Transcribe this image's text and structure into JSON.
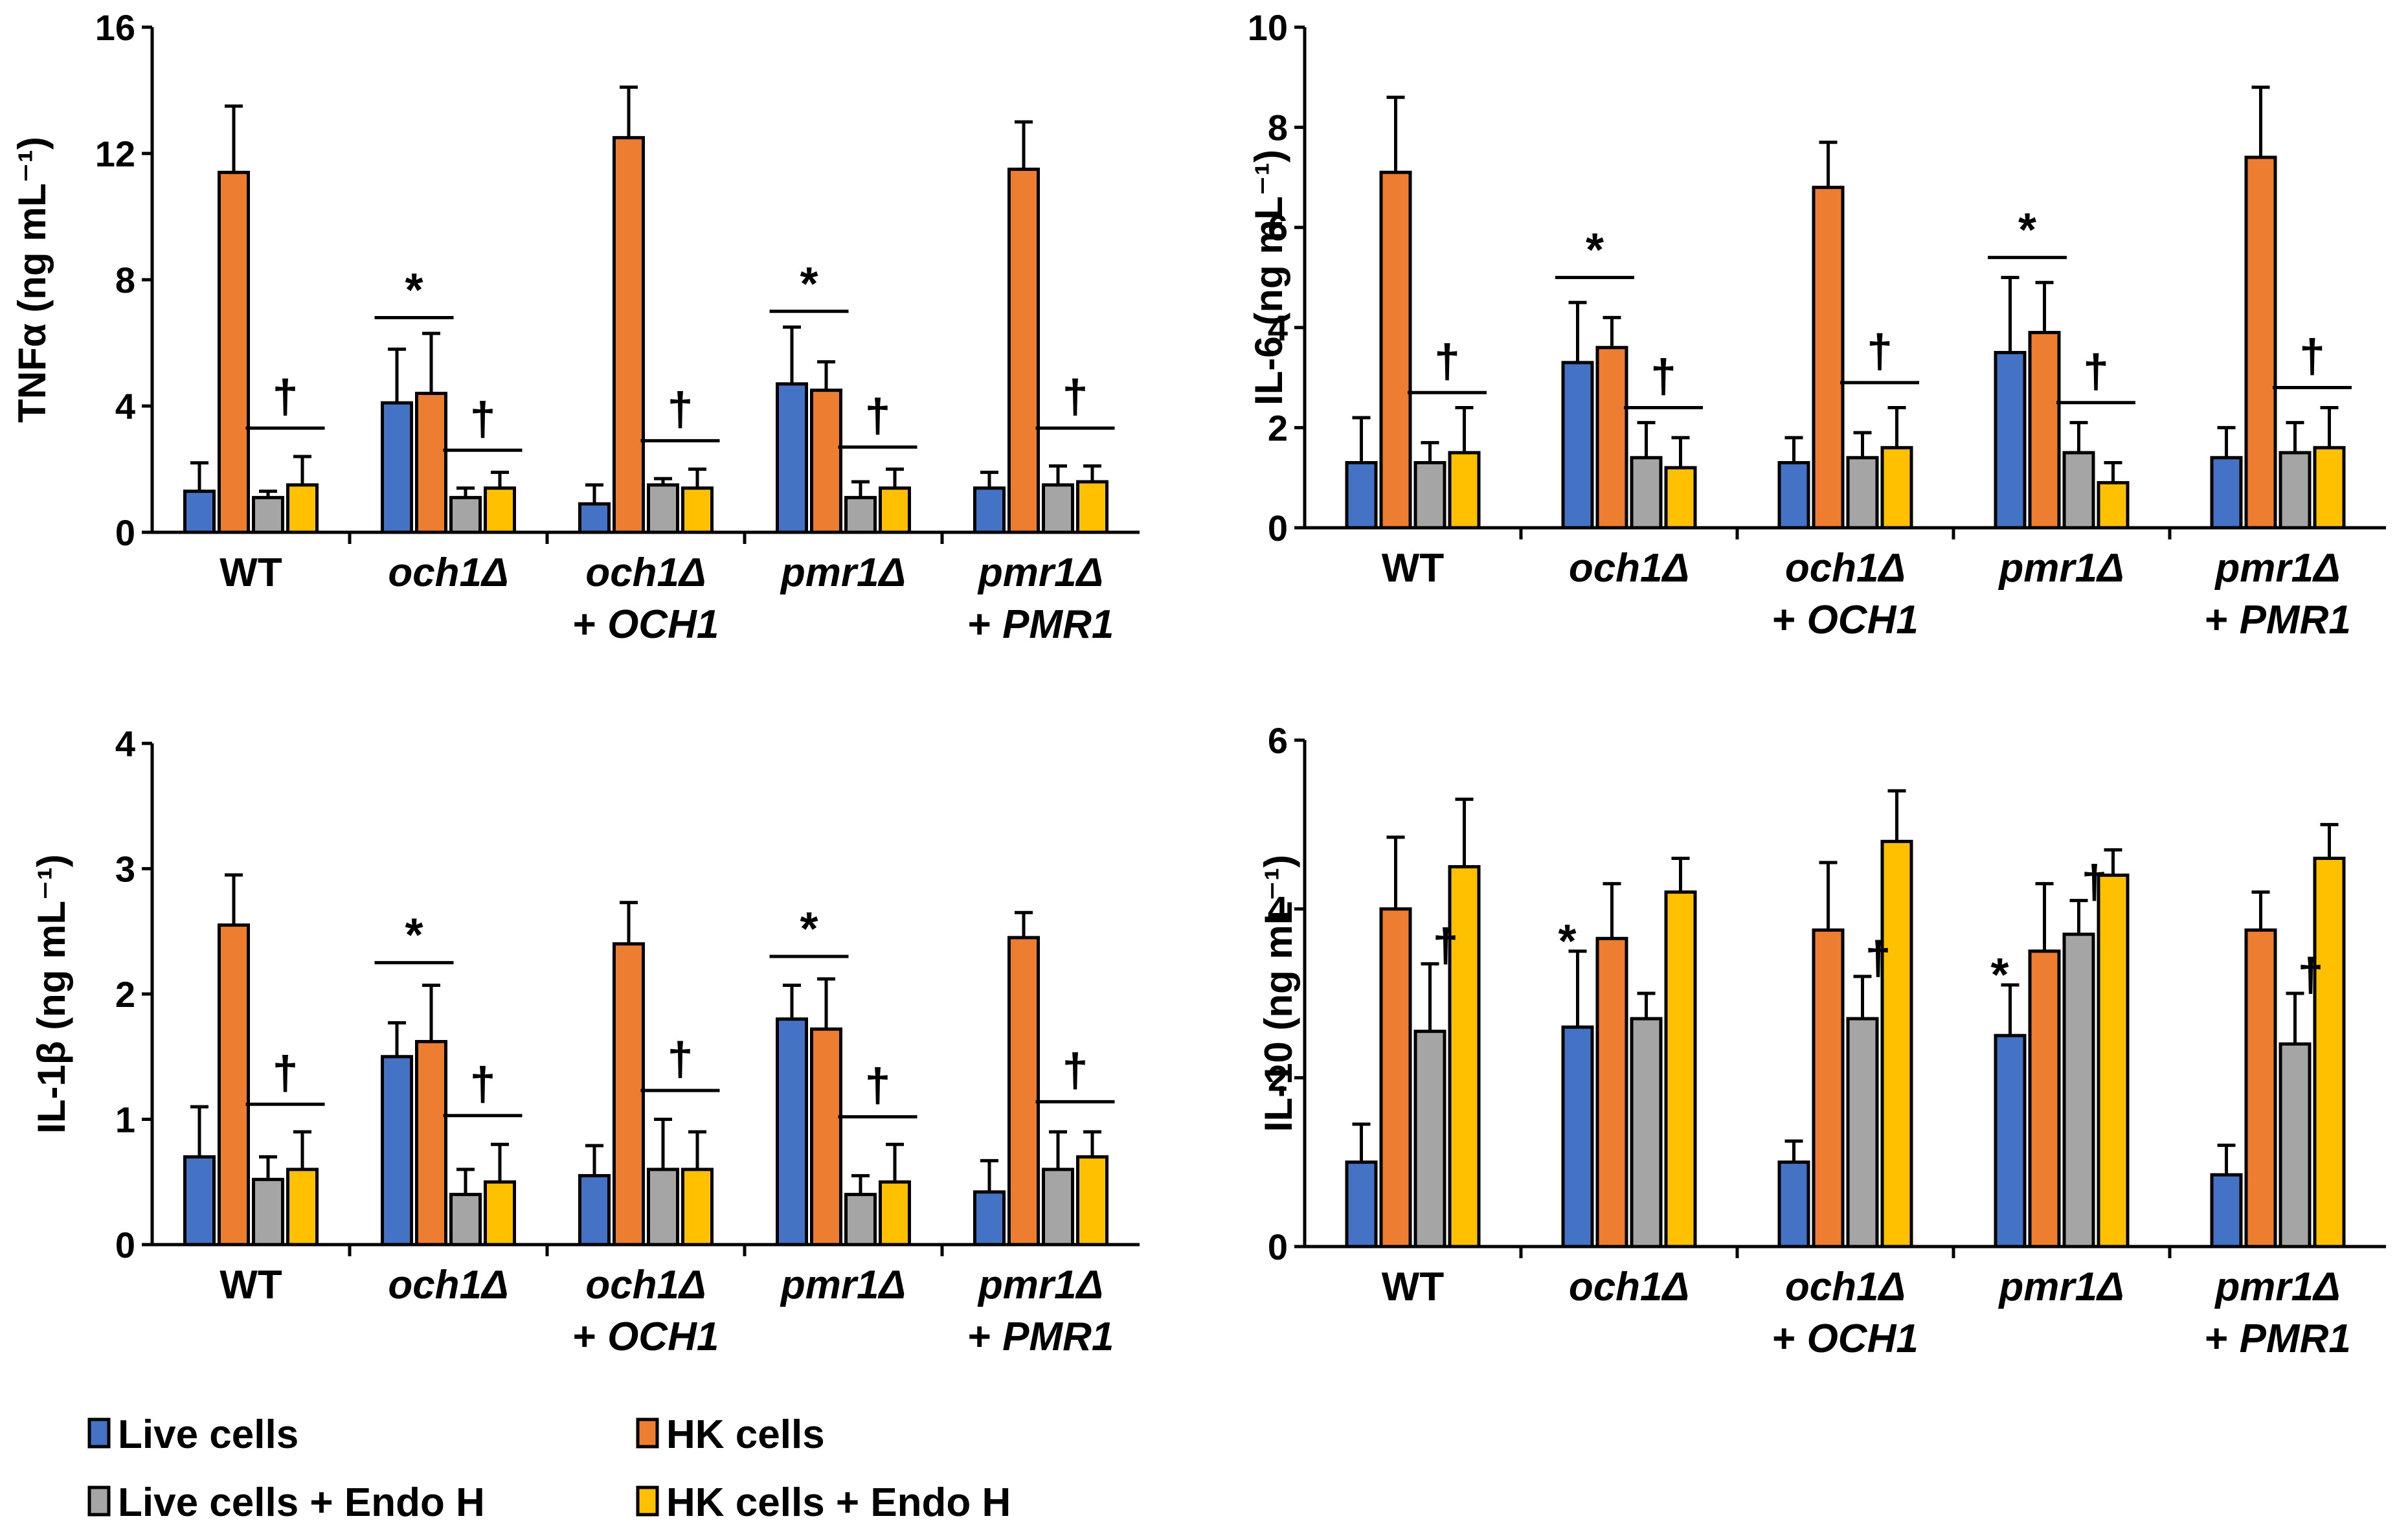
{
  "chart_data": [
    {
      "type": "bar",
      "ylabel": "TNFα (ng mL⁻¹)",
      "ylim": [
        0,
        16
      ],
      "yticks": [
        0,
        4,
        8,
        12,
        16
      ],
      "tick_labels": [
        "0",
        "4",
        "8",
        "12",
        "16"
      ],
      "categories": [
        {
          "line1": "WT",
          "line2": "",
          "italic1": false
        },
        {
          "line1": "och1Δ",
          "line2": "",
          "italic1": true
        },
        {
          "line1": "och1Δ",
          "line2": "+ OCH1",
          "italic1": true
        },
        {
          "line1": "pmr1Δ",
          "line2": "",
          "italic1": true
        },
        {
          "line1": "pmr1Δ",
          "line2": "+ PMR1",
          "italic1": true
        }
      ],
      "series": [
        {
          "name": "Live cells",
          "values": [
            1.3,
            4.1,
            0.9,
            4.7,
            1.4
          ],
          "errors": [
            0.9,
            1.7,
            0.6,
            1.8,
            0.5
          ]
        },
        {
          "name": "HK cells",
          "values": [
            11.4,
            4.4,
            12.5,
            4.5,
            11.5
          ],
          "errors": [
            2.1,
            1.9,
            1.6,
            0.9,
            1.5
          ]
        },
        {
          "name": "Live cells + Endo H",
          "values": [
            1.1,
            1.1,
            1.5,
            1.1,
            1.5
          ],
          "errors": [
            0.2,
            0.3,
            0.2,
            0.5,
            0.6
          ]
        },
        {
          "name": "HK cells + Endo H",
          "values": [
            1.5,
            1.4,
            1.4,
            1.4,
            1.6
          ],
          "errors": [
            0.9,
            0.5,
            0.6,
            0.6,
            0.5
          ]
        }
      ],
      "annotations": [
        {
          "symbol": "*",
          "cat": 1,
          "value": 6.8,
          "span": "pair1"
        },
        {
          "symbol": "*",
          "cat": 3,
          "value": 7.0,
          "span": "pair1"
        },
        {
          "symbol": "†",
          "cat": 0,
          "value": 3.3,
          "span": "pair2"
        },
        {
          "symbol": "†",
          "cat": 1,
          "value": 2.6,
          "span": "pair2"
        },
        {
          "symbol": "†",
          "cat": 2,
          "value": 2.9,
          "span": "pair2"
        },
        {
          "symbol": "†",
          "cat": 3,
          "value": 2.7,
          "span": "pair2"
        },
        {
          "symbol": "†",
          "cat": 4,
          "value": 3.3,
          "span": "pair2"
        }
      ]
    },
    {
      "type": "bar",
      "ylabel": "IL-6 (ng mL⁻¹)",
      "ylim": [
        0,
        10
      ],
      "yticks": [
        0,
        2,
        4,
        6,
        8,
        10
      ],
      "tick_labels": [
        "0",
        "2",
        "4",
        "6",
        "8",
        "10"
      ],
      "categories": [
        {
          "line1": "WT",
          "line2": "",
          "italic1": false
        },
        {
          "line1": "och1Δ",
          "line2": "",
          "italic1": true
        },
        {
          "line1": "och1Δ",
          "line2": "+ OCH1",
          "italic1": true
        },
        {
          "line1": "pmr1Δ",
          "line2": "",
          "italic1": true
        },
        {
          "line1": "pmr1Δ",
          "line2": "+ PMR1",
          "italic1": true
        }
      ],
      "series": [
        {
          "name": "Live cells",
          "values": [
            1.3,
            3.3,
            1.3,
            3.5,
            1.4
          ],
          "errors": [
            0.9,
            1.2,
            0.5,
            1.5,
            0.6
          ]
        },
        {
          "name": "HK cells",
          "values": [
            7.1,
            3.6,
            6.8,
            3.9,
            7.4
          ],
          "errors": [
            1.5,
            0.6,
            0.9,
            1.0,
            1.4
          ]
        },
        {
          "name": "Live cells + Endo H",
          "values": [
            1.3,
            1.4,
            1.4,
            1.5,
            1.5
          ],
          "errors": [
            0.4,
            0.7,
            0.5,
            0.6,
            0.6
          ]
        },
        {
          "name": "HK cells + Endo H",
          "values": [
            1.5,
            1.2,
            1.6,
            0.9,
            1.6
          ],
          "errors": [
            0.9,
            0.6,
            0.8,
            0.4,
            0.8
          ]
        }
      ],
      "annotations": [
        {
          "symbol": "*",
          "cat": 1,
          "value": 5.0,
          "span": "pair1"
        },
        {
          "symbol": "*",
          "cat": 3,
          "value": 5.4,
          "span": "pair1"
        },
        {
          "symbol": "†",
          "cat": 0,
          "value": 2.7,
          "span": "pair2"
        },
        {
          "symbol": "†",
          "cat": 1,
          "value": 2.4,
          "span": "pair2"
        },
        {
          "symbol": "†",
          "cat": 2,
          "value": 2.9,
          "span": "pair2"
        },
        {
          "symbol": "†",
          "cat": 3,
          "value": 2.5,
          "span": "pair2"
        },
        {
          "symbol": "†",
          "cat": 4,
          "value": 2.8,
          "span": "pair2"
        }
      ]
    },
    {
      "type": "bar",
      "ylabel": "IL-1β (ng mL⁻¹)",
      "ylim": [
        0,
        4
      ],
      "yticks": [
        0,
        1,
        2,
        3,
        4
      ],
      "tick_labels": [
        "0",
        "1",
        "2",
        "3",
        "4"
      ],
      "categories": [
        {
          "line1": "WT",
          "line2": "",
          "italic1": false
        },
        {
          "line1": "och1Δ",
          "line2": "",
          "italic1": true
        },
        {
          "line1": "och1Δ",
          "line2": "+ OCH1",
          "italic1": true
        },
        {
          "line1": "pmr1Δ",
          "line2": "",
          "italic1": true
        },
        {
          "line1": "pmr1Δ",
          "line2": "+ PMR1",
          "italic1": true
        }
      ],
      "series": [
        {
          "name": "Live cells",
          "values": [
            0.7,
            1.5,
            0.55,
            1.8,
            0.42
          ],
          "errors": [
            0.4,
            0.27,
            0.24,
            0.27,
            0.25
          ]
        },
        {
          "name": "HK cells",
          "values": [
            2.55,
            1.62,
            2.4,
            1.72,
            2.45
          ],
          "errors": [
            0.4,
            0.45,
            0.33,
            0.4,
            0.2
          ]
        },
        {
          "name": "Live cells + Endo H",
          "values": [
            0.52,
            0.4,
            0.6,
            0.4,
            0.6
          ],
          "errors": [
            0.18,
            0.2,
            0.4,
            0.15,
            0.3
          ]
        },
        {
          "name": "HK cells + Endo H",
          "values": [
            0.6,
            0.5,
            0.6,
            0.5,
            0.7
          ],
          "errors": [
            0.3,
            0.3,
            0.3,
            0.3,
            0.2
          ]
        }
      ],
      "annotations": [
        {
          "symbol": "*",
          "cat": 1,
          "value": 2.25,
          "span": "pair1"
        },
        {
          "symbol": "*",
          "cat": 3,
          "value": 2.3,
          "span": "pair1"
        },
        {
          "symbol": "†",
          "cat": 0,
          "value": 1.12,
          "span": "pair2"
        },
        {
          "symbol": "†",
          "cat": 1,
          "value": 1.03,
          "span": "pair2"
        },
        {
          "symbol": "†",
          "cat": 2,
          "value": 1.23,
          "span": "pair2"
        },
        {
          "symbol": "†",
          "cat": 3,
          "value": 1.02,
          "span": "pair2"
        },
        {
          "symbol": "†",
          "cat": 4,
          "value": 1.14,
          "span": "pair2"
        }
      ]
    },
    {
      "type": "bar",
      "ylabel": "IL-10 (ng mL⁻¹)",
      "ylim": [
        0,
        6
      ],
      "yticks": [
        0,
        2,
        4,
        6
      ],
      "tick_labels": [
        "0",
        "2",
        "4",
        "6"
      ],
      "categories": [
        {
          "line1": "WT",
          "line2": "",
          "italic1": false
        },
        {
          "line1": "och1Δ",
          "line2": "",
          "italic1": true
        },
        {
          "line1": "och1Δ",
          "line2": "+ OCH1",
          "italic1": true
        },
        {
          "line1": "pmr1Δ",
          "line2": "",
          "italic1": true
        },
        {
          "line1": "pmr1Δ",
          "line2": "+ PMR1",
          "italic1": true
        }
      ],
      "series": [
        {
          "name": "Live cells",
          "values": [
            1.0,
            2.6,
            1.0,
            2.5,
            0.85
          ],
          "errors": [
            0.45,
            0.9,
            0.25,
            0.6,
            0.35
          ]
        },
        {
          "name": "HK cells",
          "values": [
            4.0,
            3.65,
            3.75,
            3.5,
            3.75
          ],
          "errors": [
            0.85,
            0.65,
            0.8,
            0.8,
            0.45
          ]
        },
        {
          "name": "Live cells + Endo H",
          "values": [
            2.55,
            2.7,
            2.7,
            3.7,
            2.4
          ],
          "errors": [
            0.8,
            0.3,
            0.5,
            0.4,
            0.6
          ]
        },
        {
          "name": "HK cells + Endo H",
          "values": [
            4.5,
            4.2,
            4.8,
            4.4,
            4.6
          ],
          "errors": [
            0.8,
            0.4,
            0.6,
            0.3,
            0.4
          ]
        }
      ],
      "annotations": [
        {
          "symbol": "*",
          "cat": 1,
          "value": 3.6,
          "span": "bar0"
        },
        {
          "symbol": "*",
          "cat": 3,
          "value": 3.2,
          "span": "bar0"
        },
        {
          "symbol": "†",
          "cat": 0,
          "value": 3.55,
          "span": "bar2"
        },
        {
          "symbol": "†",
          "cat": 2,
          "value": 3.4,
          "span": "bar2"
        },
        {
          "symbol": "†",
          "cat": 3,
          "value": 4.3,
          "span": "bar2"
        },
        {
          "symbol": "†",
          "cat": 4,
          "value": 3.2,
          "span": "bar2"
        }
      ]
    }
  ],
  "legend": [
    {
      "label": "Live cells",
      "color": "#4472c4"
    },
    {
      "label": "HK cells",
      "color": "#ed7d31"
    },
    {
      "label": "Live cells + Endo H",
      "color": "#a5a5a5"
    },
    {
      "label": "HK cells + Endo H",
      "color": "#ffc000"
    }
  ]
}
